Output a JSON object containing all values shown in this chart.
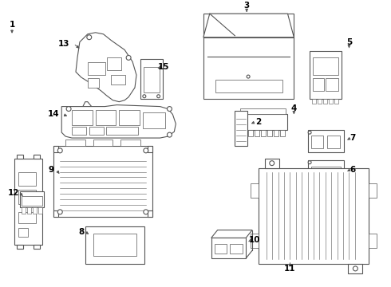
{
  "bg_color": "#ffffff",
  "line_color": "#555555",
  "label_color": "#000000",
  "fig_width": 4.9,
  "fig_height": 3.6,
  "dpi": 100
}
